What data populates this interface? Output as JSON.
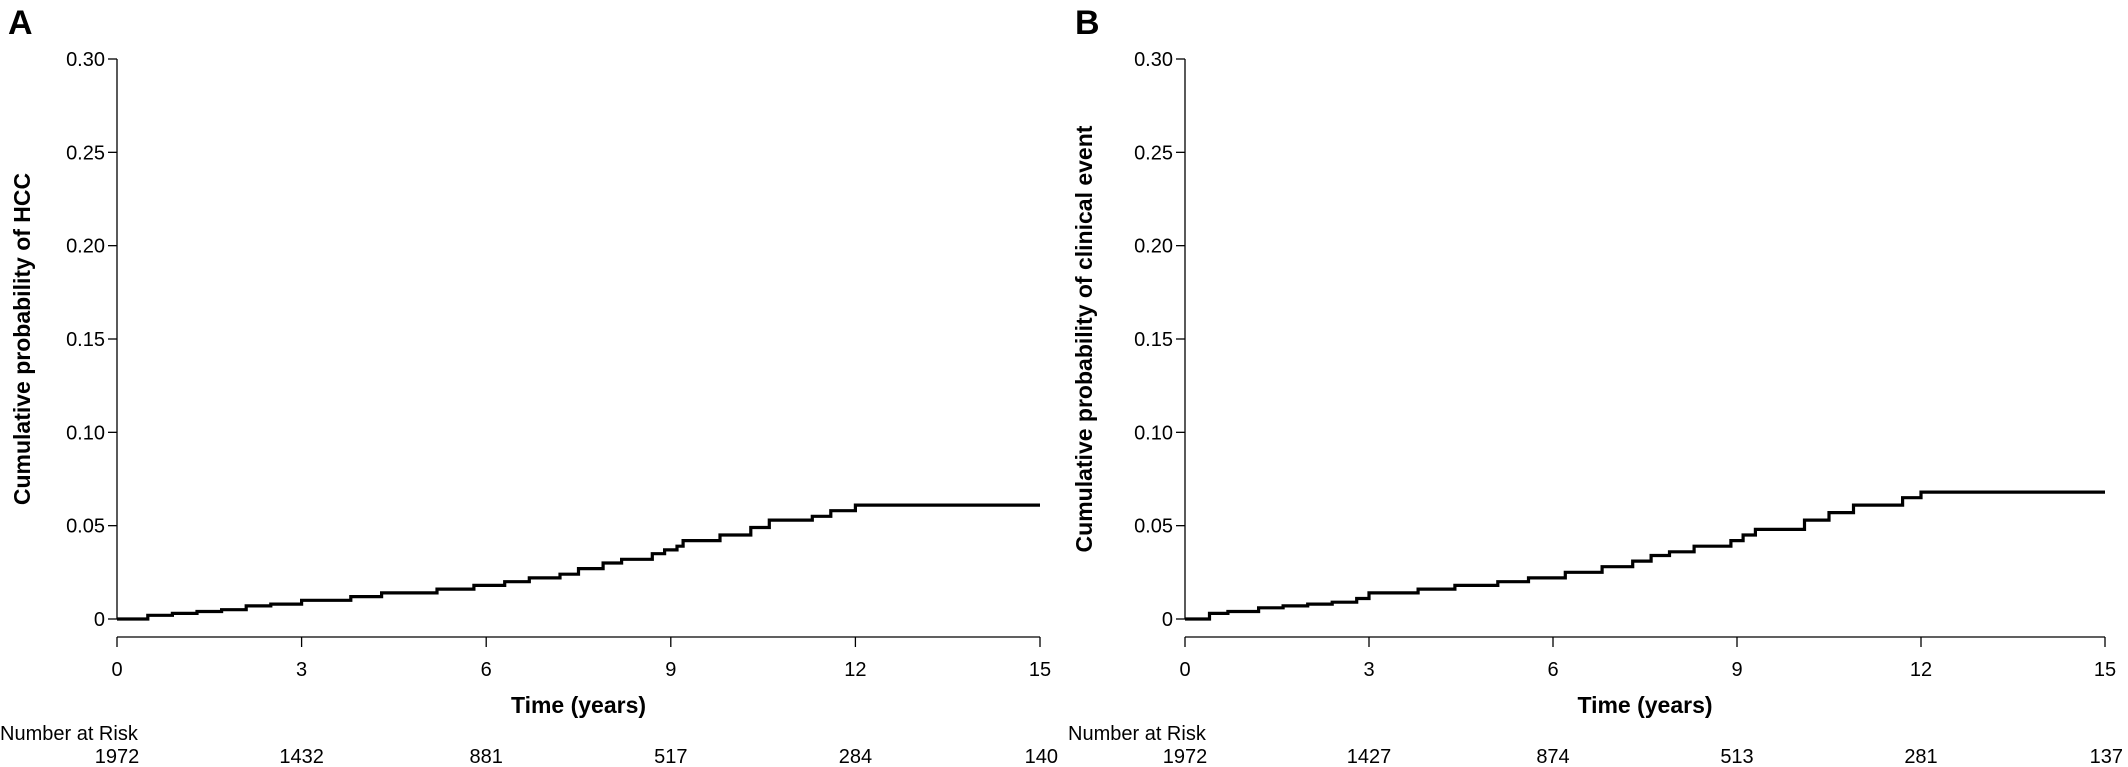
{
  "chart_data": [
    {
      "panel": "A",
      "type": "line",
      "xlabel": "Time (years)",
      "ylabel": "Cumulative probability of HCC",
      "xlim": [
        0,
        15
      ],
      "ylim": [
        0,
        0.3
      ],
      "x_ticks": [
        0,
        3,
        6,
        9,
        12,
        15
      ],
      "x_tick_labels": [
        "0",
        "3",
        "6",
        "9",
        "12",
        "15"
      ],
      "y_ticks": [
        0,
        0.05,
        0.1,
        0.15,
        0.2,
        0.25,
        0.3
      ],
      "y_tick_labels": [
        "0",
        "0.05",
        "0.10",
        "0.15",
        "0.20",
        "0.25",
        "0.30"
      ],
      "grid": false,
      "step": true,
      "series": [
        {
          "x": [
            0,
            0.5,
            0.9,
            1.3,
            1.7,
            2.1,
            2.5,
            3.0,
            3.8,
            4.3,
            5.2,
            5.8,
            6.3,
            6.7,
            7.2,
            7.5,
            7.9,
            8.2,
            8.7,
            8.9,
            9.1,
            9.2,
            9.8,
            10.3,
            10.6,
            11.3,
            11.6,
            12.0,
            15.0
          ],
          "y": [
            0,
            0.002,
            0.003,
            0.004,
            0.005,
            0.007,
            0.008,
            0.01,
            0.012,
            0.014,
            0.016,
            0.018,
            0.02,
            0.022,
            0.024,
            0.027,
            0.03,
            0.032,
            0.035,
            0.037,
            0.039,
            0.042,
            0.045,
            0.049,
            0.053,
            0.055,
            0.058,
            0.061,
            0.061
          ]
        }
      ],
      "risk_table": {
        "title": "Number at Risk",
        "times": [
          0,
          3,
          6,
          9,
          12,
          15
        ],
        "values": [
          "1972",
          "1432",
          "881",
          "517",
          "284",
          "140"
        ]
      }
    },
    {
      "panel": "B",
      "type": "line",
      "xlabel": "Time (years)",
      "ylabel": "Cumulative probability of clinical event",
      "xlim": [
        0,
        15
      ],
      "ylim": [
        0,
        0.3
      ],
      "x_ticks": [
        0,
        3,
        6,
        9,
        12,
        15
      ],
      "x_tick_labels": [
        "0",
        "3",
        "6",
        "9",
        "12",
        "15"
      ],
      "y_ticks": [
        0,
        0.05,
        0.1,
        0.15,
        0.2,
        0.25,
        0.3
      ],
      "y_tick_labels": [
        "0",
        "0.05",
        "0.10",
        "0.15",
        "0.20",
        "0.25",
        "0.30"
      ],
      "grid": false,
      "step": true,
      "series": [
        {
          "x": [
            0,
            0.4,
            0.7,
            1.2,
            1.6,
            2.0,
            2.4,
            2.8,
            3.0,
            3.8,
            4.4,
            5.1,
            5.6,
            6.2,
            6.8,
            7.3,
            7.6,
            7.9,
            8.3,
            8.9,
            9.1,
            9.3,
            10.1,
            10.5,
            10.9,
            11.7,
            12.0,
            15.0
          ],
          "y": [
            0,
            0.003,
            0.004,
            0.006,
            0.007,
            0.008,
            0.009,
            0.011,
            0.014,
            0.016,
            0.018,
            0.02,
            0.022,
            0.025,
            0.028,
            0.031,
            0.034,
            0.036,
            0.039,
            0.042,
            0.045,
            0.048,
            0.053,
            0.057,
            0.061,
            0.065,
            0.068,
            0.068
          ]
        }
      ],
      "risk_table": {
        "title": "Number at Risk",
        "times": [
          0,
          3,
          6,
          9,
          12,
          15
        ],
        "values": [
          "1972",
          "1427",
          "874",
          "513",
          "281",
          "137"
        ]
      }
    }
  ]
}
